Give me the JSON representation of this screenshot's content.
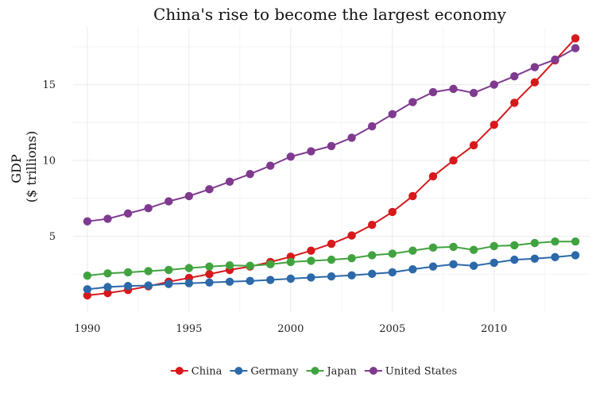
{
  "chart_data": {
    "type": "line",
    "title": "China's rise to become the largest economy",
    "xlabel": "",
    "ylabel": [
      "GDP",
      "($ trillions)"
    ],
    "xlim": [
      1989.3,
      2014.7
    ],
    "ylim": [
      0,
      18.8
    ],
    "x_ticks": [
      1990,
      1995,
      2000,
      2005,
      2010
    ],
    "y_ticks": [
      5,
      10,
      15
    ],
    "grid": true,
    "legend": "bottom",
    "x": [
      1990,
      1991,
      1992,
      1993,
      1994,
      1995,
      1996,
      1997,
      1998,
      1999,
      2000,
      2001,
      2002,
      2003,
      2004,
      2005,
      2006,
      2007,
      2008,
      2009,
      2010,
      2011,
      2012,
      2013,
      2014
    ],
    "series": [
      {
        "name": "China",
        "color": "#d7191c",
        "values": [
          1.1,
          1.25,
          1.45,
          1.7,
          2.0,
          2.25,
          2.5,
          2.78,
          3.0,
          3.3,
          3.65,
          4.05,
          4.5,
          5.05,
          5.75,
          6.6,
          7.65,
          8.95,
          10.0,
          11.0,
          12.35,
          13.8,
          15.15,
          16.6,
          18.05
        ]
      },
      {
        "name": "Germany",
        "color": "#2c69a9",
        "values": [
          1.5,
          1.65,
          1.72,
          1.75,
          1.85,
          1.9,
          1.95,
          2.0,
          2.05,
          2.12,
          2.2,
          2.28,
          2.35,
          2.42,
          2.52,
          2.62,
          2.82,
          3.0,
          3.15,
          3.05,
          3.25,
          3.45,
          3.52,
          3.62,
          3.75
        ]
      },
      {
        "name": "Japan",
        "color": "#41a33f",
        "values": [
          2.4,
          2.55,
          2.62,
          2.7,
          2.78,
          2.9,
          3.0,
          3.08,
          3.05,
          3.15,
          3.3,
          3.38,
          3.45,
          3.55,
          3.75,
          3.85,
          4.05,
          4.25,
          4.3,
          4.1,
          4.35,
          4.4,
          4.55,
          4.65,
          4.65
        ]
      },
      {
        "name": "United States",
        "color": "#7f3a90",
        "values": [
          5.98,
          6.15,
          6.5,
          6.85,
          7.3,
          7.65,
          8.1,
          8.6,
          9.1,
          9.65,
          10.25,
          10.6,
          10.95,
          11.5,
          12.25,
          13.05,
          13.85,
          14.5,
          14.72,
          14.45,
          15.0,
          15.55,
          16.15,
          16.65,
          17.4
        ]
      }
    ]
  }
}
